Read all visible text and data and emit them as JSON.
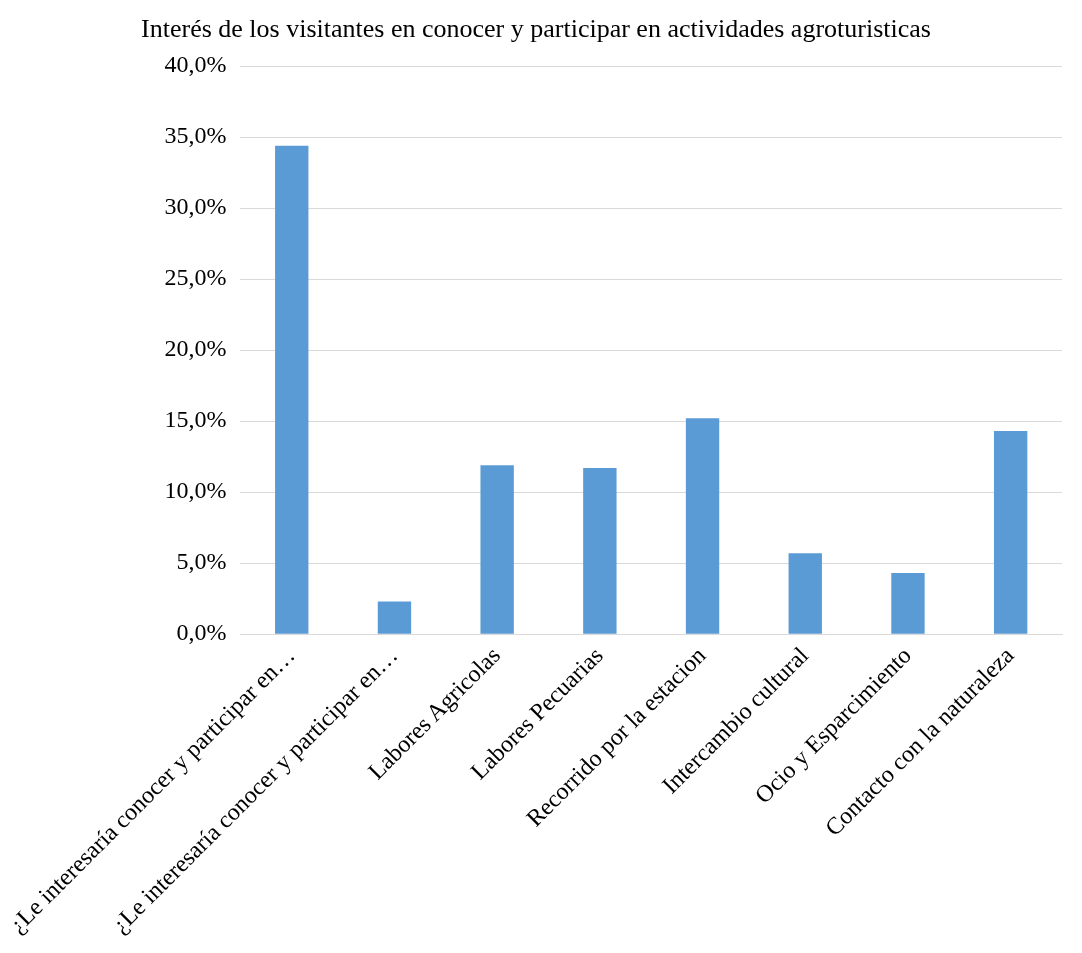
{
  "chart_data": {
    "type": "bar",
    "title": "Interés de los visitantes en conocer y participar en actividades agroturisticas",
    "categories": [
      "¿Le interesaría conocer y participar en…",
      "¿Le interesaría conocer y participar en…",
      "Labores Agricolas",
      "Labores Pecuarias",
      "Recorrido por la estacion",
      "Intercambio cultural",
      "Ocio y Esparcimiento",
      "Contacto con la naturaleza"
    ],
    "values": [
      34.4,
      2.3,
      11.9,
      11.7,
      15.2,
      5.7,
      4.3,
      14.3
    ],
    "color": "#5b9bd5",
    "ylim": [
      0,
      40
    ],
    "yticks": [
      {
        "value": 0,
        "label": "0,0%"
      },
      {
        "value": 5,
        "label": "5,0%"
      },
      {
        "value": 10,
        "label": "10,0%"
      },
      {
        "value": 15,
        "label": "15,0%"
      },
      {
        "value": 20,
        "label": "20,0%"
      },
      {
        "value": 25,
        "label": "25,0%"
      },
      {
        "value": 30,
        "label": "30,0%"
      },
      {
        "value": 35,
        "label": "35,0%"
      },
      {
        "value": 40,
        "label": "40,0%"
      }
    ],
    "grid": "y"
  }
}
